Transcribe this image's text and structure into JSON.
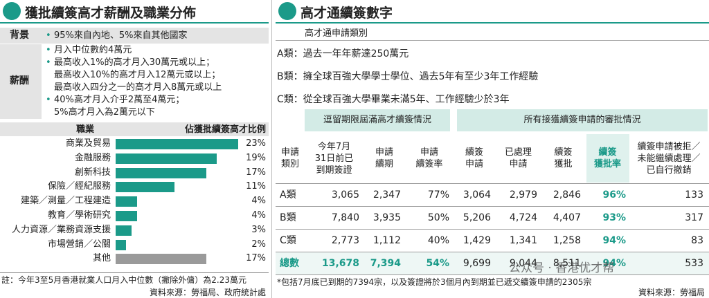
{
  "left": {
    "title": "獲批續簽高才薪酬及職業分佈",
    "background": {
      "label": "背景",
      "items": [
        [
          "95%來自內地、5%來自其他國家"
        ]
      ]
    },
    "salary": {
      "label": "薪酬",
      "items": [
        [
          "月入中位數約4萬元"
        ],
        [
          "最高收入1%的高才月入30萬元或以上；",
          "最高收入10%的高才月入12萬元或以上；",
          "最高收入四分之一的高才月入8萬元或以上"
        ],
        [
          "40%高才月入介乎2萬至4萬元；",
          "5%高才月入為2萬元以下"
        ]
      ]
    },
    "occupations": {
      "header_category": "職業",
      "header_value": "佔獲批續簽高才比例",
      "categories": [
        "商業及貿易",
        "金融服務",
        "創新科技",
        "保險／經紀服務",
        "建築／測量／工程建造",
        "教育／學術研究",
        "人力資源／業務資源支援",
        "市場營銷／公關",
        "其他"
      ],
      "values": [
        23,
        19,
        17,
        11,
        4,
        4,
        3,
        2,
        17
      ],
      "value_labels": [
        "23%",
        "19%",
        "17%",
        "11%",
        "4%",
        "4%",
        "3%",
        "2%",
        "17%"
      ],
      "colors": [
        "#1b9a89",
        "#1b9a89",
        "#1b9a89",
        "#1b9a89",
        "#1b9a89",
        "#1b9a89",
        "#1b9a89",
        "#1b9a89",
        "#9a9a9a"
      ]
    },
    "note": "註：今年3至5月香港就業人口月入中位數（撇除外傭）為2.23萬元",
    "source": "資料來源：勞福局、政府統計處"
  },
  "right": {
    "title": "高才通續簽數字",
    "subtitle": "高才通申請類別",
    "classes": [
      "A類：過去一年年薪達250萬元",
      "B類：擁全球百強大學學士學位、過去5年有至少3年工作經驗",
      "C類：從全球百強大學畢業未滿5年、工作經驗少於3年"
    ],
    "table": {
      "groups": [
        "逗留期限屆滿高才續簽情況",
        "所有接獲續簽申請的審批情況"
      ],
      "columns": [
        [
          "申請",
          "類別"
        ],
        [
          "今年7月",
          "31日前已",
          "到期簽證"
        ],
        [
          "申請",
          "續期"
        ],
        [
          "申請",
          "續簽率"
        ],
        [
          "續簽",
          "申請"
        ],
        [
          "已處理",
          "申請"
        ],
        [
          "續簽",
          "獲批"
        ],
        [
          "續簽",
          "獲批率"
        ],
        [
          "續簽申請被拒／",
          "未能繼續處理／",
          "已自行撤銷"
        ]
      ],
      "rows": [
        [
          "A類",
          "3,065",
          "2,347",
          "77%",
          "3,064",
          "2,979",
          "2,846",
          "96%",
          "133"
        ],
        [
          "B類",
          "7,840",
          "3,935",
          "50%",
          "5,206",
          "4,724",
          "4,407",
          "93%",
          "317"
        ],
        [
          "C類",
          "2,773",
          "1,112",
          "40%",
          "1,429",
          "1,341",
          "1,258",
          "94%",
          "83"
        ],
        [
          "總數",
          "13,678",
          "7,394",
          "54%",
          "9,699",
          "9,044",
          "8,511",
          "94%",
          "533"
        ]
      ]
    },
    "note": "*包括7月底已到期的7394宗，以及簽證將於3個月內到期並已遞交續簽申請的2305宗",
    "source": "資料來源：勞福局",
    "watermark": "公众号 · 香港优才帮"
  }
}
